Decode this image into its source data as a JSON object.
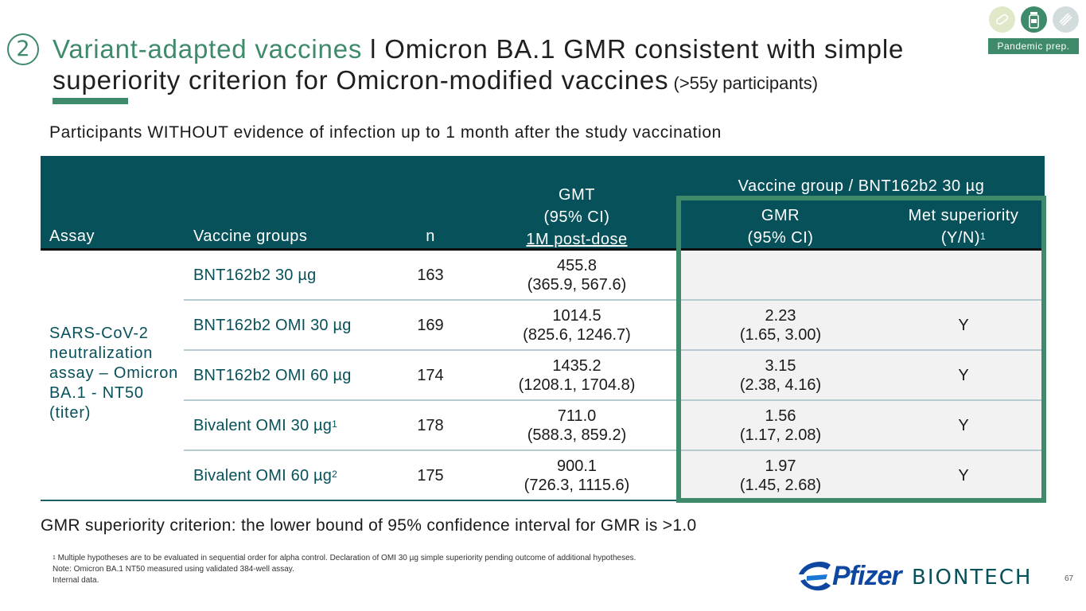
{
  "header": {
    "number": "2",
    "title_green": "Variant-adapted vaccines",
    "title_sep": " l ",
    "title_rest": "Omicron BA.1 GMR consistent with simple superiority criterion for Omicron-modified vaccines",
    "title_small": " (>55y participants)",
    "badge": "Pandemic prep.",
    "icons": [
      "pill-icon",
      "vial-icon",
      "capsule-icon"
    ]
  },
  "subtitle": "Participants WITHOUT evidence of infection up to 1 month after the study vaccination",
  "table": {
    "col_assay": "Assay",
    "col_groups": "Vaccine groups",
    "col_n": "n",
    "col_gmt_1": "GMT",
    "col_gmt_2": "(95% CI)",
    "col_gmt_3": "1M post-dose",
    "col_ratio_header": "Vaccine group / BNT162b2 30 µg",
    "col_gmr_1": "GMR",
    "col_gmr_2": "(95% CI)",
    "col_sup_1": "Met superiority",
    "col_sup_2": "(Y/N)",
    "col_sup_sup": "1",
    "assay_label": "SARS-CoV-2 neutralization assay – Omicron BA.1 - NT50 (titer)",
    "rows": [
      {
        "group": "BNT162b2 30 µg",
        "group_sup": "",
        "n": "163",
        "gmt": "455.8",
        "gmt_ci": "(365.9, 567.6)",
        "gmr": "",
        "gmr_ci": "",
        "met": ""
      },
      {
        "group": "BNT162b2 OMI 30 µg",
        "group_sup": "",
        "n": "169",
        "gmt": "1014.5",
        "gmt_ci": "(825.6, 1246.7)",
        "gmr": "2.23",
        "gmr_ci": "(1.65, 3.00)",
        "met": "Y"
      },
      {
        "group": "BNT162b2 OMI 60 µg",
        "group_sup": "",
        "n": "174",
        "gmt": "1435.2",
        "gmt_ci": "(1208.1, 1704.8)",
        "gmr": "3.15",
        "gmr_ci": "(2.38, 4.16)",
        "met": "Y"
      },
      {
        "group": "Bivalent OMI 30 µg",
        "group_sup": "1",
        "n": "178",
        "gmt": "711.0",
        "gmt_ci": "(588.3, 859.2)",
        "gmr": "1.56",
        "gmr_ci": "(1.17, 2.08)",
        "met": "Y"
      },
      {
        "group": "Bivalent OMI 60 µg",
        "group_sup": "2",
        "n": "175",
        "gmt": "900.1",
        "gmt_ci": "(726.3, 1115.6)",
        "gmr": "1.97",
        "gmr_ci": "(1.45, 2.68)",
        "met": "Y"
      }
    ]
  },
  "criterion": "GMR superiority criterion: the lower bound of 95% confidence interval for GMR is >1.0",
  "footnotes": {
    "note1_sup": "1",
    "note1": " Multiple hypotheses are to be evaluated in sequential order for alpha control. Declaration of OMI 30 µg simple superiority pending outcome of additional hypotheses.",
    "note2": "Note: Omicron BA.1 NT50 measured using validated 384-well assay.",
    "note3": "Internal data."
  },
  "logos": {
    "pfizer": "Pfizer",
    "biontech": "BIONTECH"
  },
  "page_number": "67",
  "colors": {
    "accent_green": "#3f8a6a",
    "header_teal": "#07515a",
    "pale_green": "#dfe8c9",
    "icon_grey": "#d3dcdd"
  }
}
